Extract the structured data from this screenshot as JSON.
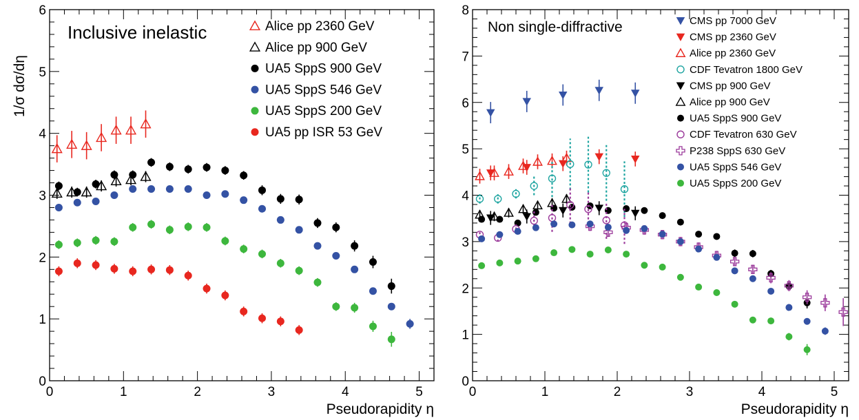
{
  "chart_data": [
    {
      "type": "scatter",
      "title": "Inclusive inelastic",
      "xlabel": "Pseudorapidity η",
      "ylabel": "1/σ dσ/dη",
      "xlim": [
        0,
        5.2
      ],
      "ylim": [
        0,
        6
      ],
      "xticks": [
        0,
        1,
        2,
        3,
        4,
        5
      ],
      "yticks": [
        0,
        1,
        2,
        3,
        4,
        5,
        6
      ],
      "legend_position": "top-right",
      "series": [
        {
          "name": "Alice pp 2360 GeV",
          "color": "#e8271f",
          "marker": "triangle-open",
          "x": [
            0.1,
            0.3,
            0.5,
            0.7,
            0.9,
            1.1,
            1.3
          ],
          "y": [
            3.75,
            3.82,
            3.8,
            3.93,
            4.05,
            4.05,
            4.15
          ],
          "err": [
            0.22,
            0.22,
            0.22,
            0.22,
            0.22,
            0.22,
            0.22
          ]
        },
        {
          "name": "Alice pp 900 GeV",
          "color": "#000000",
          "marker": "triangle-open",
          "x": [
            0.1,
            0.3,
            0.5,
            0.7,
            0.9,
            1.1,
            1.3
          ],
          "y": [
            3.03,
            3.05,
            3.05,
            3.15,
            3.23,
            3.25,
            3.3
          ],
          "err": [
            0.09,
            0.09,
            0.09,
            0.09,
            0.09,
            0.09,
            0.09
          ]
        },
        {
          "name": "UA5 SppS 900 GeV",
          "color": "#000000",
          "marker": "circle",
          "x": [
            0.125,
            0.375,
            0.625,
            0.875,
            1.125,
            1.375,
            1.625,
            1.875,
            2.125,
            2.375,
            2.625,
            2.875,
            3.125,
            3.375,
            3.625,
            3.875,
            4.125,
            4.375,
            4.625
          ],
          "y": [
            3.15,
            3.05,
            3.18,
            3.33,
            3.33,
            3.53,
            3.46,
            3.42,
            3.45,
            3.4,
            3.32,
            3.08,
            2.94,
            2.93,
            2.55,
            2.48,
            2.18,
            1.92,
            1.53
          ],
          "err": [
            0.07,
            0.07,
            0.07,
            0.07,
            0.07,
            0.07,
            0.07,
            0.07,
            0.07,
            0.07,
            0.07,
            0.08,
            0.08,
            0.08,
            0.08,
            0.08,
            0.09,
            0.1,
            0.12
          ]
        },
        {
          "name": "UA5 SppS 546 GeV",
          "color": "#3452a4",
          "marker": "circle",
          "x": [
            0.125,
            0.375,
            0.625,
            0.875,
            1.125,
            1.375,
            1.625,
            1.875,
            2.125,
            2.375,
            2.625,
            2.875,
            3.125,
            3.375,
            3.625,
            3.875,
            4.125,
            4.375,
            4.625,
            4.875
          ],
          "y": [
            2.8,
            2.88,
            2.9,
            3.0,
            3.1,
            3.1,
            3.1,
            3.1,
            3.0,
            3.02,
            2.92,
            2.78,
            2.6,
            2.44,
            2.18,
            2.02,
            1.8,
            1.45,
            1.2,
            0.92
          ],
          "err": [
            0.03,
            0.03,
            0.03,
            0.03,
            0.03,
            0.03,
            0.03,
            0.03,
            0.03,
            0.03,
            0.03,
            0.03,
            0.03,
            0.03,
            0.03,
            0.03,
            0.03,
            0.04,
            0.04,
            0.08
          ]
        },
        {
          "name": "UA5 SppS 200 GeV",
          "color": "#3db73d",
          "marker": "circle",
          "x": [
            0.125,
            0.375,
            0.625,
            0.875,
            1.125,
            1.375,
            1.625,
            1.875,
            2.125,
            2.375,
            2.625,
            2.875,
            3.125,
            3.375,
            3.625,
            3.875,
            4.125,
            4.375,
            4.625
          ],
          "y": [
            2.2,
            2.23,
            2.27,
            2.25,
            2.48,
            2.53,
            2.44,
            2.49,
            2.48,
            2.26,
            2.13,
            2.05,
            1.9,
            1.78,
            1.59,
            1.2,
            1.18,
            0.88,
            0.67
          ],
          "err": [
            0.07,
            0.07,
            0.07,
            0.07,
            0.07,
            0.07,
            0.07,
            0.07,
            0.07,
            0.07,
            0.07,
            0.07,
            0.07,
            0.07,
            0.07,
            0.07,
            0.08,
            0.09,
            0.12
          ]
        },
        {
          "name": "UA5 pp ISR 53 GeV",
          "color": "#e8271f",
          "marker": "circle",
          "x": [
            0.125,
            0.375,
            0.625,
            0.875,
            1.125,
            1.375,
            1.625,
            1.875,
            2.125,
            2.375,
            2.625,
            2.875,
            3.125,
            3.375
          ],
          "y": [
            1.77,
            1.9,
            1.87,
            1.81,
            1.77,
            1.8,
            1.79,
            1.7,
            1.49,
            1.38,
            1.12,
            1.01,
            0.96,
            0.82
          ],
          "err": [
            0.08,
            0.08,
            0.08,
            0.08,
            0.08,
            0.08,
            0.08,
            0.08,
            0.08,
            0.08,
            0.08,
            0.08,
            0.08,
            0.08
          ]
        }
      ]
    },
    {
      "type": "scatter",
      "title": "Non single-diffractive",
      "xlabel": "Pseudorapidity η",
      "ylabel": "",
      "xlim": [
        0,
        5.2
      ],
      "ylim": [
        0,
        8
      ],
      "xticks": [
        0,
        1,
        2,
        3,
        4,
        5
      ],
      "yticks": [
        0,
        1,
        2,
        3,
        4,
        5,
        6,
        7,
        8
      ],
      "legend_position": "top-right",
      "series": [
        {
          "name": "CMS pp 7000 GeV",
          "color": "#3452a4",
          "marker": "triangle-down",
          "x": [
            0.25,
            0.75,
            1.25,
            1.75,
            2.25
          ],
          "y": [
            5.78,
            6.02,
            6.16,
            6.26,
            6.2
          ],
          "err": [
            0.23,
            0.23,
            0.23,
            0.23,
            0.23
          ]
        },
        {
          "name": "CMS pp 2360 GeV",
          "color": "#e8271f",
          "marker": "triangle-down",
          "x": [
            0.25,
            0.75,
            1.25,
            1.75,
            2.25
          ],
          "y": [
            4.48,
            4.6,
            4.68,
            4.83,
            4.78
          ],
          "err": [
            0.16,
            0.16,
            0.16,
            0.16,
            0.16
          ]
        },
        {
          "name": "Alice pp 2360 GeV",
          "color": "#e8271f",
          "marker": "triangle-open",
          "x": [
            0.1,
            0.3,
            0.5,
            0.7,
            0.9,
            1.1,
            1.3
          ],
          "y": [
            4.41,
            4.48,
            4.51,
            4.63,
            4.72,
            4.74,
            4.8
          ],
          "err": [
            0.16,
            0.16,
            0.16,
            0.16,
            0.16,
            0.16,
            0.16
          ]
        },
        {
          "name": "CDF Tevatron 1800 GeV",
          "color": "#1fa5a1",
          "marker": "circle-open",
          "x": [
            0.1,
            0.35,
            0.6,
            0.85,
            1.1,
            1.35,
            1.6,
            1.85,
            2.1
          ],
          "y": [
            3.92,
            3.92,
            4.03,
            4.2,
            4.36,
            4.67,
            4.66,
            4.48,
            4.13
          ],
          "err": [
            0.1,
            0.1,
            0.1,
            0.2,
            0.4,
            0.55,
            0.6,
            0.6,
            0.6
          ],
          "dashed": true
        },
        {
          "name": "CMS pp 900 GeV",
          "color": "#000000",
          "marker": "triangle-down",
          "x": [
            0.25,
            0.75,
            1.25,
            1.75,
            2.25
          ],
          "y": [
            3.51,
            3.54,
            3.67,
            3.72,
            3.61
          ],
          "err": [
            0.15,
            0.15,
            0.15,
            0.15,
            0.15
          ]
        },
        {
          "name": "Alice pp 900 GeV",
          "color": "#000000",
          "marker": "triangle-open",
          "x": [
            0.1,
            0.3,
            0.5,
            0.7,
            0.9,
            1.1,
            1.3
          ],
          "y": [
            3.58,
            3.54,
            3.62,
            3.7,
            3.78,
            3.83,
            3.92
          ],
          "err": [
            0.1,
            0.1,
            0.1,
            0.1,
            0.1,
            0.1,
            0.1
          ]
        },
        {
          "name": "UA5 SppS 900 GeV",
          "color": "#000000",
          "marker": "circle",
          "x": [
            0.125,
            0.375,
            0.625,
            0.875,
            1.125,
            1.375,
            1.625,
            1.875,
            2.125,
            2.375,
            2.625,
            2.875,
            3.125,
            3.375,
            3.625,
            3.875,
            4.125,
            4.375,
            4.625
          ],
          "y": [
            3.48,
            3.48,
            3.4,
            3.63,
            3.72,
            3.74,
            3.77,
            3.67,
            3.71,
            3.67,
            3.56,
            3.42,
            3.16,
            3.11,
            2.75,
            2.74,
            2.31,
            2.04,
            1.68
          ],
          "err": [
            0.06,
            0.06,
            0.06,
            0.06,
            0.06,
            0.06,
            0.06,
            0.06,
            0.06,
            0.06,
            0.06,
            0.06,
            0.06,
            0.06,
            0.08,
            0.08,
            0.08,
            0.1,
            0.12
          ]
        },
        {
          "name": "CDF Tevatron 630 GeV",
          "color": "#9b3a9b",
          "marker": "circle-open",
          "x": [
            0.1,
            0.35,
            0.6,
            0.85,
            1.1,
            1.35,
            1.6,
            1.85,
            2.1
          ],
          "y": [
            3.15,
            3.08,
            3.27,
            3.45,
            3.51,
            3.79,
            3.7,
            3.46,
            3.35
          ],
          "err": [
            0.08,
            0.08,
            0.1,
            0.2,
            0.3,
            0.4,
            0.4,
            0.4,
            0.4
          ],
          "dashed": true
        },
        {
          "name": "P238 SppS 630 GeV",
          "color": "#9b3a9b",
          "marker": "cross-open",
          "x": [
            1.625,
            1.875,
            2.125,
            2.375,
            2.625,
            2.875,
            3.125,
            3.375,
            3.625,
            3.875,
            4.125,
            4.375,
            4.625,
            4.875,
            5.125
          ],
          "y": [
            3.33,
            3.2,
            3.3,
            3.25,
            3.15,
            3.0,
            2.88,
            2.7,
            2.57,
            2.4,
            2.22,
            2.05,
            1.8,
            1.68,
            1.48
          ],
          "err": [
            0.1,
            0.1,
            0.1,
            0.1,
            0.1,
            0.1,
            0.1,
            0.1,
            0.1,
            0.1,
            0.12,
            0.12,
            0.15,
            0.18,
            0.3
          ]
        },
        {
          "name": "UA5 SppS 546 GeV",
          "color": "#3452a4",
          "marker": "circle",
          "x": [
            0.125,
            0.375,
            0.625,
            0.875,
            1.125,
            1.375,
            1.625,
            1.875,
            2.125,
            2.375,
            2.625,
            2.875,
            3.125,
            3.375,
            3.625,
            3.875,
            4.125,
            4.375,
            4.625,
            4.875
          ],
          "y": [
            3.06,
            3.15,
            3.22,
            3.3,
            3.38,
            3.36,
            3.38,
            3.31,
            3.24,
            3.28,
            3.16,
            3.0,
            2.84,
            2.66,
            2.37,
            2.2,
            1.93,
            1.58,
            1.28,
            1.07
          ],
          "err": [
            0.03,
            0.03,
            0.03,
            0.03,
            0.03,
            0.03,
            0.03,
            0.03,
            0.03,
            0.03,
            0.03,
            0.03,
            0.03,
            0.03,
            0.03,
            0.03,
            0.03,
            0.04,
            0.04,
            0.08
          ]
        },
        {
          "name": "UA5 SppS 200 GeV",
          "color": "#3db73d",
          "marker": "circle",
          "x": [
            0.125,
            0.375,
            0.625,
            0.875,
            1.125,
            1.375,
            1.625,
            1.875,
            2.125,
            2.375,
            2.625,
            2.875,
            3.125,
            3.375,
            3.625,
            3.875,
            4.125,
            4.375,
            4.625
          ],
          "y": [
            2.48,
            2.54,
            2.58,
            2.63,
            2.76,
            2.83,
            2.73,
            2.82,
            2.73,
            2.49,
            2.45,
            2.23,
            2.02,
            1.9,
            1.65,
            1.31,
            1.29,
            0.95,
            0.67
          ],
          "err": [
            0.06,
            0.06,
            0.06,
            0.06,
            0.06,
            0.06,
            0.06,
            0.06,
            0.06,
            0.06,
            0.06,
            0.06,
            0.06,
            0.06,
            0.06,
            0.06,
            0.07,
            0.08,
            0.12
          ]
        }
      ]
    }
  ]
}
